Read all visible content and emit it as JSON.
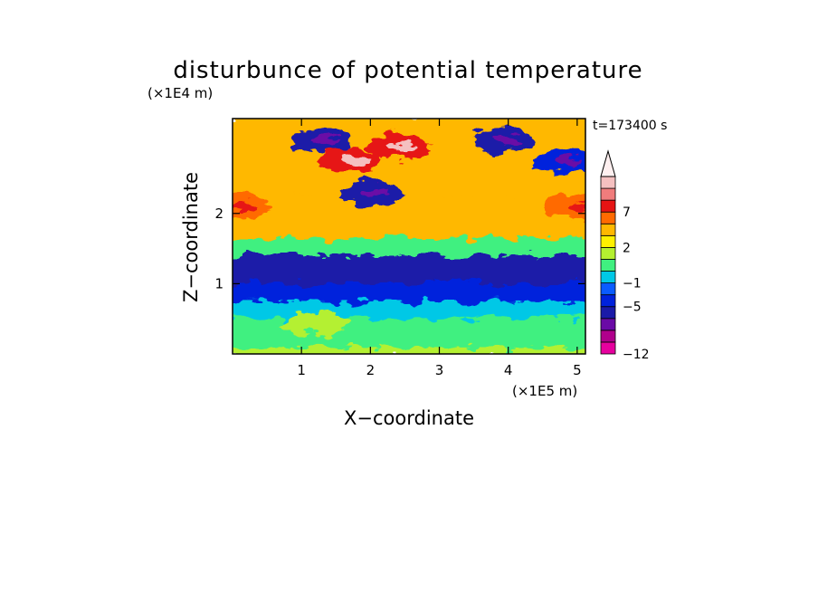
{
  "chart_data": {
    "type": "heatmap",
    "title": "disturbunce of potential temperature",
    "timestamp": "t=173400 s",
    "xlabel": "X−coordinate",
    "ylabel": "Z−coordinate",
    "x_unit": "(×1E5 m)",
    "y_unit": "(×1E4 m)",
    "x_ticks": [
      "1",
      "2",
      "3",
      "4",
      "5"
    ],
    "y_ticks": [
      "1",
      "2"
    ],
    "xlim": [
      0,
      5.12
    ],
    "ylim": [
      0,
      3.35
    ],
    "colorbar": {
      "levels": [
        -12,
        -11,
        -9,
        -7,
        -5,
        -3,
        -1,
        0,
        1,
        2,
        3,
        5,
        7,
        9,
        11
      ],
      "labels": [
        "−12",
        "−5",
        "−1",
        "2",
        "7"
      ],
      "colors": [
        "#e6009e",
        "#b0008c",
        "#6a0aa6",
        "#1a1aa8",
        "#0022dc",
        "#0a5cff",
        "#00c8e6",
        "#40f080",
        "#b4f030",
        "#fff000",
        "#ffb800",
        "#ff6a00",
        "#e61414",
        "#f07c7c",
        "#f5c0c0"
      ],
      "extend_top_color": "#fff0f0"
    },
    "field_bands": [
      {
        "z": [
          0.0,
          0.15
        ],
        "value": 1.5
      },
      {
        "z": [
          0.15,
          0.55
        ],
        "value": 0.5
      },
      {
        "z": [
          0.55,
          0.8
        ],
        "value": -0.5
      },
      {
        "z": [
          0.8,
          1.05
        ],
        "value": -4
      },
      {
        "z": [
          1.05,
          1.45
        ],
        "value": -6
      },
      {
        "z": [
          1.45,
          1.7
        ],
        "value": 0.5
      },
      {
        "z": [
          1.7,
          2.3
        ],
        "value": 3
      },
      {
        "z": [
          2.3,
          3.35
        ],
        "value": 4
      }
    ],
    "field_features": [
      {
        "x": 1.3,
        "z": 3.05,
        "value": -6
      },
      {
        "x": 3.9,
        "z": 3.05,
        "value": -6
      },
      {
        "x": 4.8,
        "z": 2.75,
        "value": -5
      },
      {
        "x": 2.4,
        "z": 2.95,
        "value": 8
      },
      {
        "x": 1.7,
        "z": 2.75,
        "value": 8
      },
      {
        "x": 2.0,
        "z": 2.3,
        "value": -6
      },
      {
        "x": 0.1,
        "z": 2.1,
        "value": 5
      },
      {
        "x": 5.0,
        "z": 2.1,
        "value": 5
      },
      {
        "x": 3.3,
        "z": 0.9,
        "value": -4
      },
      {
        "x": 1.2,
        "z": 0.45,
        "value": 1.5
      }
    ]
  }
}
